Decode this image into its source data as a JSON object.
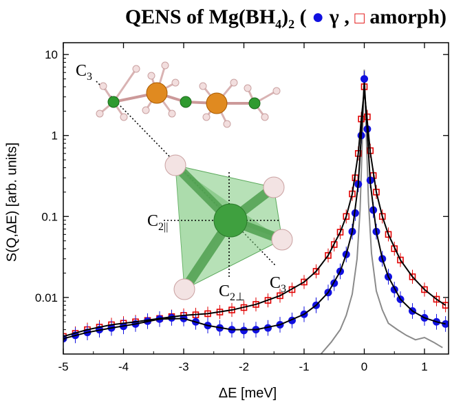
{
  "title": {
    "prefix": "QENS of Mg(BH",
    "sub": "4",
    "suffix": ")",
    "sub2": "2",
    "open": " ( ",
    "gamma_label": "γ",
    "sep": " ,  ",
    "amorph_label": "amorph)"
  },
  "chart_data": {
    "type": "scatter",
    "title": "QENS of Mg(BH4)2 ( γ , amorph)",
    "xlabel": "ΔE [meV]",
    "ylabel": "S(Q,ΔE) [arb. units]",
    "xlim": [
      -5,
      1.4
    ],
    "ylim": [
      0.002,
      14
    ],
    "yscale": "log",
    "x_ticks": [
      "-5",
      "-4",
      "-3",
      "-2",
      "-1",
      "0",
      "1"
    ],
    "x_tick_values": [
      -5,
      -4,
      -3,
      -2,
      -1,
      0,
      1
    ],
    "y_ticks": [
      "0.01",
      "0.1",
      "1",
      "10"
    ],
    "y_tick_values": [
      0.01,
      0.1,
      1,
      10
    ],
    "grid": false,
    "colors": {
      "gamma": "#1010e0",
      "amorph": "#e00000",
      "fit": "#000000",
      "resolution": "#8a8a8a"
    },
    "series": [
      {
        "name": "γ",
        "marker": "filled-circle",
        "x": [
          -5.0,
          -4.8,
          -4.6,
          -4.4,
          -4.2,
          -4.0,
          -3.8,
          -3.6,
          -3.4,
          -3.2,
          -3.0,
          -2.8,
          -2.6,
          -2.4,
          -2.2,
          -2.0,
          -1.8,
          -1.6,
          -1.4,
          -1.2,
          -1.0,
          -0.8,
          -0.6,
          -0.5,
          -0.4,
          -0.3,
          -0.2,
          -0.15,
          -0.1,
          -0.05,
          0.0,
          0.05,
          0.1,
          0.15,
          0.2,
          0.3,
          0.4,
          0.5,
          0.6,
          0.8,
          1.0,
          1.2,
          1.35
        ],
        "y": [
          0.0031,
          0.0034,
          0.0037,
          0.004,
          0.0042,
          0.0044,
          0.0047,
          0.0051,
          0.0054,
          0.0056,
          0.0055,
          0.005,
          0.0045,
          0.0042,
          0.004,
          0.0039,
          0.004,
          0.0042,
          0.0046,
          0.0052,
          0.0062,
          0.008,
          0.0115,
          0.015,
          0.021,
          0.034,
          0.065,
          0.11,
          0.25,
          1.0,
          5.0,
          1.2,
          0.28,
          0.12,
          0.065,
          0.03,
          0.018,
          0.0125,
          0.0095,
          0.0068,
          0.0056,
          0.005,
          0.0047
        ]
      },
      {
        "name": "amorph",
        "marker": "open-square",
        "x": [
          -5.0,
          -4.8,
          -4.6,
          -4.4,
          -4.2,
          -4.0,
          -3.8,
          -3.6,
          -3.4,
          -3.2,
          -3.0,
          -2.8,
          -2.6,
          -2.4,
          -2.2,
          -2.0,
          -1.8,
          -1.6,
          -1.4,
          -1.2,
          -1.0,
          -0.8,
          -0.6,
          -0.5,
          -0.4,
          -0.3,
          -0.2,
          -0.15,
          -0.1,
          -0.05,
          0.0,
          0.05,
          0.1,
          0.15,
          0.2,
          0.3,
          0.4,
          0.5,
          0.6,
          0.8,
          1.0,
          1.2,
          1.35
        ],
        "y": [
          0.0033,
          0.0036,
          0.004,
          0.0043,
          0.0046,
          0.0048,
          0.005,
          0.0052,
          0.0055,
          0.0058,
          0.006,
          0.0061,
          0.0063,
          0.0066,
          0.007,
          0.0075,
          0.0082,
          0.0092,
          0.0105,
          0.0125,
          0.0155,
          0.021,
          0.033,
          0.045,
          0.064,
          0.1,
          0.19,
          0.3,
          0.6,
          1.6,
          4.0,
          1.7,
          0.65,
          0.32,
          0.2,
          0.1,
          0.06,
          0.04,
          0.029,
          0.018,
          0.0125,
          0.0095,
          0.008
        ]
      }
    ],
    "fit_lines": [
      {
        "x": [
          -5.0,
          -4.6,
          -4.2,
          -3.8,
          -3.4,
          -3.0,
          -2.6,
          -2.2,
          -1.8,
          -1.4,
          -1.0,
          -0.8,
          -0.6,
          -0.4,
          -0.3,
          -0.2,
          -0.1,
          -0.05,
          0.0,
          0.05,
          0.1,
          0.2,
          0.3,
          0.4,
          0.6,
          0.8,
          1.0,
          1.2,
          1.35
        ],
        "y": [
          0.0031,
          0.0037,
          0.0042,
          0.0047,
          0.0054,
          0.0055,
          0.0045,
          0.004,
          0.004,
          0.0046,
          0.0062,
          0.008,
          0.0115,
          0.021,
          0.034,
          0.065,
          0.25,
          1.0,
          4.5,
          1.1,
          0.26,
          0.065,
          0.03,
          0.018,
          0.0095,
          0.0068,
          0.0056,
          0.005,
          0.0047
        ]
      },
      {
        "x": [
          -5.0,
          -4.6,
          -4.2,
          -3.8,
          -3.4,
          -3.0,
          -2.6,
          -2.2,
          -1.8,
          -1.4,
          -1.0,
          -0.8,
          -0.6,
          -0.4,
          -0.3,
          -0.2,
          -0.1,
          -0.05,
          0.0,
          0.05,
          0.1,
          0.2,
          0.3,
          0.4,
          0.6,
          0.8,
          1.0,
          1.2,
          1.35
        ],
        "y": [
          0.0033,
          0.004,
          0.0046,
          0.005,
          0.0055,
          0.006,
          0.0063,
          0.007,
          0.0082,
          0.0105,
          0.0155,
          0.021,
          0.033,
          0.064,
          0.1,
          0.19,
          0.6,
          1.6,
          3.6,
          1.5,
          0.62,
          0.2,
          0.1,
          0.06,
          0.029,
          0.018,
          0.0125,
          0.0095,
          0.008
        ]
      }
    ],
    "resolution": {
      "x": [
        -0.72,
        -0.55,
        -0.4,
        -0.3,
        -0.2,
        -0.12,
        -0.07,
        -0.03,
        0.0,
        0.03,
        0.07,
        0.12,
        0.2,
        0.3,
        0.4,
        0.55,
        0.7,
        0.85,
        1.0,
        1.15,
        1.3
      ],
      "y": [
        0.002,
        0.0028,
        0.004,
        0.006,
        0.011,
        0.03,
        0.12,
        1.0,
        6.5,
        1.2,
        0.15,
        0.035,
        0.012,
        0.007,
        0.0048,
        0.004,
        0.0034,
        0.003,
        0.0032,
        0.0028,
        0.0024
      ]
    },
    "annotations": [
      "C3",
      "C3",
      "C2||",
      "C2⊥"
    ]
  }
}
